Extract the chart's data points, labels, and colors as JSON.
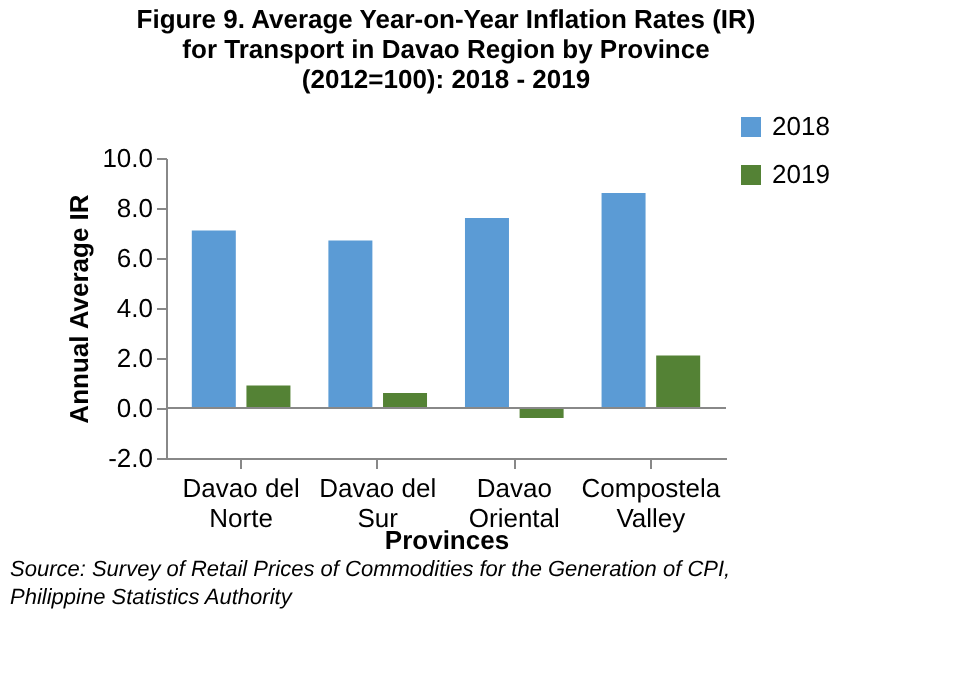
{
  "chart_data": {
    "type": "bar",
    "title": "Figure 9. Average Year-on-Year Inflation Rates (IR) for Transport in Davao Region by Province (2012=100): 2018 - 2019",
    "xlabel": "Provinces",
    "ylabel": "Annual Average IR",
    "categories": [
      "Davao del Norte",
      "Davao del Sur",
      "Davao Oriental",
      "Compostela Valley"
    ],
    "series": [
      {
        "name": "2018",
        "color": "#5b9bd5",
        "values": [
          7.1,
          6.7,
          7.6,
          8.6
        ]
      },
      {
        "name": "2019",
        "color": "#548235",
        "values": [
          0.9,
          0.6,
          -0.4,
          2.1
        ]
      }
    ],
    "ylim": [
      -2,
      10
    ],
    "yticks": [
      {
        "value": -2,
        "label": "-2.0"
      },
      {
        "value": 0,
        "label": "0.0"
      },
      {
        "value": 2,
        "label": "2.0"
      },
      {
        "value": 4,
        "label": "4.0"
      },
      {
        "value": 6,
        "label": "6.0"
      },
      {
        "value": 8,
        "label": "8.0"
      },
      {
        "value": 10,
        "label": "10.0"
      }
    ],
    "ref_lines": [
      {
        "axis": "y",
        "value": 0,
        "color": "#888888"
      }
    ],
    "grid": false,
    "legend": "top right",
    "annotations": [
      "Source: Survey of Retail Prices of Commodities for the Generation of CPI, Philippine Statistics Authority"
    ]
  }
}
